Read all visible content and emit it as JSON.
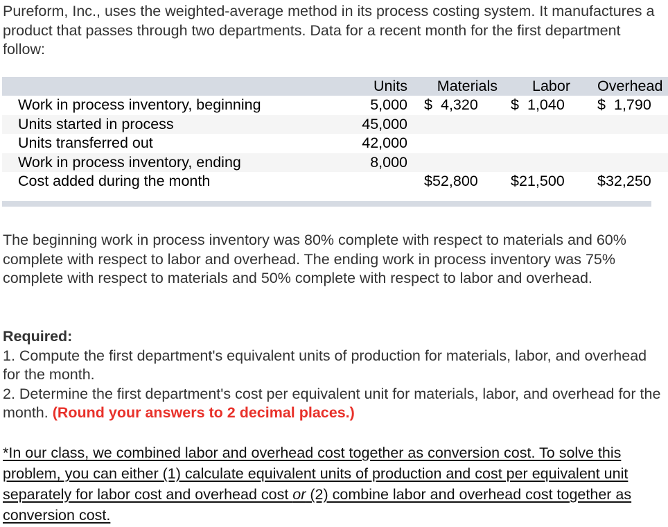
{
  "intro": {
    "text": "Pureform, Inc., uses the weighted-average method in its process costing system. It manufactures a product that passes through two departments. Data for a recent month for the first department follow:"
  },
  "table": {
    "headers": {
      "units": "Units",
      "materials": "Materials",
      "labor": "Labor",
      "overhead": "Overhead"
    },
    "rows": [
      {
        "label": "Work in process inventory, beginning",
        "units": "5,000",
        "materials": {
          "sign": "$",
          "value": "4,320"
        },
        "labor": {
          "sign": "$",
          "value": "1,040"
        },
        "overhead": {
          "sign": "$",
          "value": "1,790"
        }
      },
      {
        "label": "Units started in process",
        "units": "45,000"
      },
      {
        "label": "Units transferred out",
        "units": "42,000"
      },
      {
        "label": "Work in process inventory, ending",
        "units": "8,000"
      },
      {
        "label": "Cost added during the month",
        "units": "",
        "materials": {
          "sign": "$",
          "value": "52,800"
        },
        "labor": {
          "sign": "$",
          "value": "21,500"
        },
        "overhead": {
          "sign": "$",
          "value": "32,250"
        }
      }
    ],
    "colors": {
      "header_band": "#d6dbe3",
      "shaded_row": "#f5f5f5"
    }
  },
  "completion": {
    "text": "The beginning work in process inventory was 80% complete with respect to materials and 60% complete with respect to labor and overhead. The ending work in process inventory was 75% complete with respect to materials and 50% complete with respect to labor and overhead."
  },
  "required": {
    "title": "Required:",
    "item1": "1. Compute the first department's equivalent units of production for materials, labor, and overhead for the month.",
    "item2": "2. Determine the first department's cost per equivalent unit for materials, labor, and overhead for the month.",
    "item2_note": "(Round your answers to 2 decimal places.)",
    "note_color": "#e8312a"
  },
  "class_note": {
    "part1": "*In our class, we combined labor and overhead cost together as conversion cost. To solve this problem, you can either (1) calculate equivalent units of production and cost per equivalent unit separately for labor cost and overhead cost ",
    "italic": "or",
    "part2": " (2) combine labor and overhead cost together as conversion cost."
  }
}
